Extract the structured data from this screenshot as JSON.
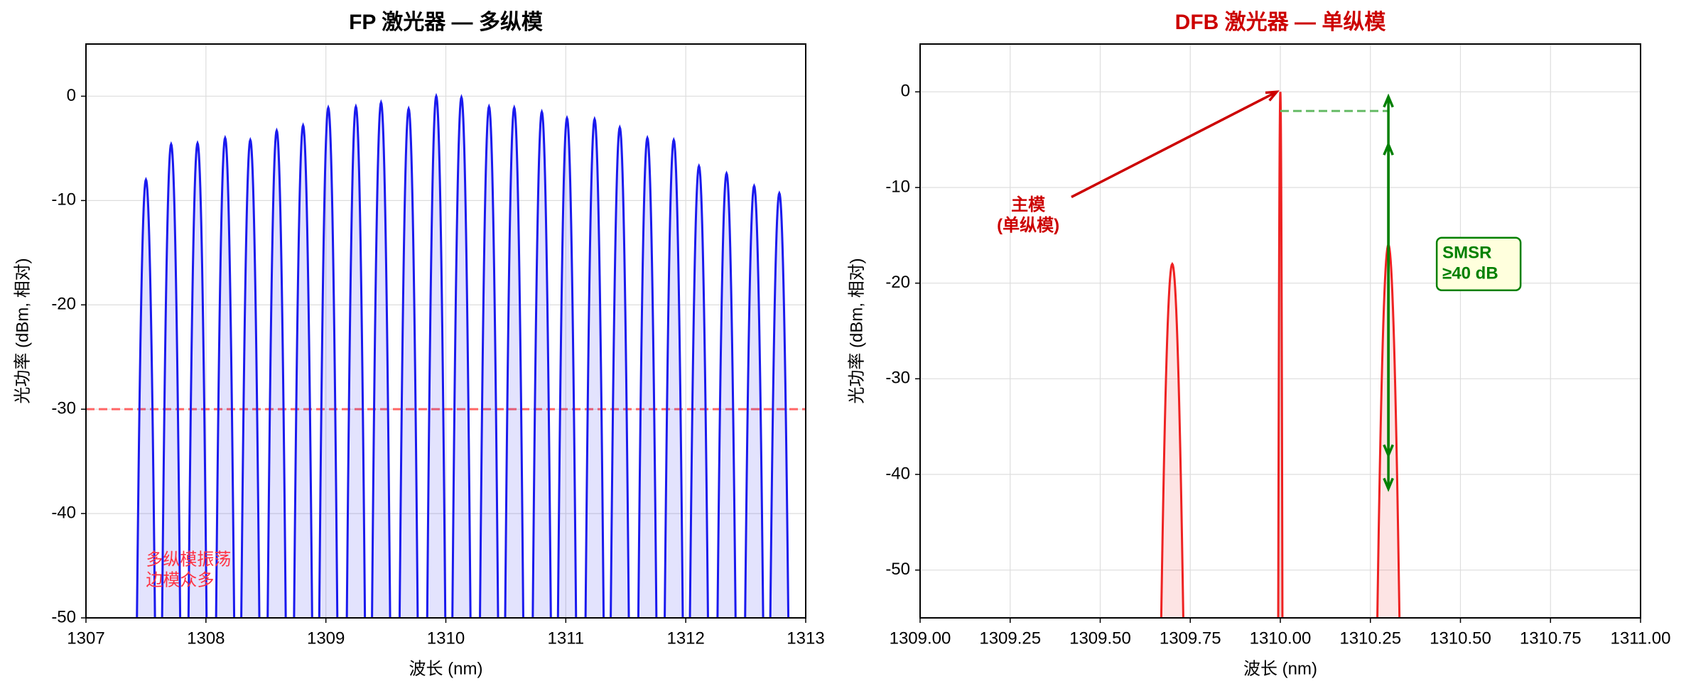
{
  "chart_data": [
    {
      "type": "spectrum",
      "title": "FP 激光器 — 多纵模",
      "x_label": "波长 (nm)",
      "y_label": "光功率 (dBm, 相对)",
      "xlim": [
        1307,
        1313
      ],
      "ylim": [
        -50,
        5
      ],
      "xticks": [
        1307,
        1308,
        1309,
        1310,
        1311,
        1312,
        1313
      ],
      "yticks": [
        0,
        -10,
        -20,
        -30,
        -40,
        -50
      ],
      "grid": true,
      "color": "#1a1aee",
      "x": [
        1307.5,
        1307.71,
        1307.93,
        1308.16,
        1308.37,
        1308.59,
        1308.81,
        1309.02,
        1309.25,
        1309.46,
        1309.69,
        1309.92,
        1310.13,
        1310.36,
        1310.57,
        1310.8,
        1311.01,
        1311.24,
        1311.45,
        1311.68,
        1311.9,
        1312.11,
        1312.34,
        1312.57,
        1312.78
      ],
      "values": [
        -8,
        -4.6,
        -4.5,
        -4.0,
        -4.2,
        -3.3,
        -2.8,
        -1.1,
        -1.0,
        -0.6,
        -1.2,
        0,
        -0.1,
        -1.0,
        -1.1,
        -1.5,
        -2.1,
        -2.2,
        -3.0,
        -4.0,
        -4.2,
        -6.7,
        -7.4,
        -8.6,
        -9.3
      ],
      "hlines": [
        {
          "value": -30,
          "color": "#ff6666"
        }
      ],
      "annotations": [
        {
          "text": [
            "多纵模振荡",
            "边模众多"
          ],
          "x": 1307.5,
          "y": -45.5,
          "color": "#ff3344"
        }
      ]
    },
    {
      "type": "spectrum",
      "title": "DFB 激光器 — 单纵模",
      "title_color": "#cc0000",
      "x_label": "波长 (nm)",
      "y_label": "光功率 (dBm, 相对)",
      "xlim": [
        1309,
        1311
      ],
      "ylim": [
        -55,
        5
      ],
      "xticks": [
        {
          "value": 1309.0,
          "label": "1309.00"
        },
        {
          "value": 1309.25,
          "label": "1309.25"
        },
        {
          "value": 1309.5,
          "label": "1309.50"
        },
        {
          "value": 1309.75,
          "label": "1309.75"
        },
        {
          "value": 1310,
          "label": "1310.00"
        },
        {
          "value": 1310.25,
          "label": "1310.25"
        },
        {
          "value": 1310.5,
          "label": "1310.50"
        },
        {
          "value": 1310.75,
          "label": "1310.75"
        },
        {
          "value": 1311,
          "label": "1311.00"
        }
      ],
      "yticks": [
        0,
        -10,
        -20,
        -30,
        -40,
        -50
      ],
      "grid": true,
      "color": "#ee2222",
      "x": [
        1309.7,
        1310.0,
        1310.3
      ],
      "values": [
        -18,
        0,
        -16
      ],
      "hlines": [],
      "segments": [
        {
          "x": [
            1310.0,
            1310.3
          ],
          "y": [
            -2,
            -2
          ],
          "color": "#66bb66"
        }
      ],
      "arrows": [
        {
          "x": 1310.3,
          "y": [
            -0.5,
            -41.5
          ],
          "color": "#008000"
        },
        {
          "x": 1310.3,
          "y": [
            -5.5,
            -38
          ],
          "color": "#008000"
        }
      ],
      "annotations": [
        {
          "text": [
            "主模",
            "(单纵模)"
          ],
          "x": 1309.3,
          "y": -13,
          "color": "#cc0000",
          "bold": true,
          "arrow_from": [
            1309.42,
            -11
          ],
          "arrow_to": [
            1309.99,
            0
          ]
        },
        {
          "text": [
            "SMSR",
            "≥40 dB"
          ],
          "x": 1310.45,
          "y": -18,
          "color": "#008000",
          "bold": true,
          "box": "#ffffdd"
        }
      ]
    }
  ]
}
